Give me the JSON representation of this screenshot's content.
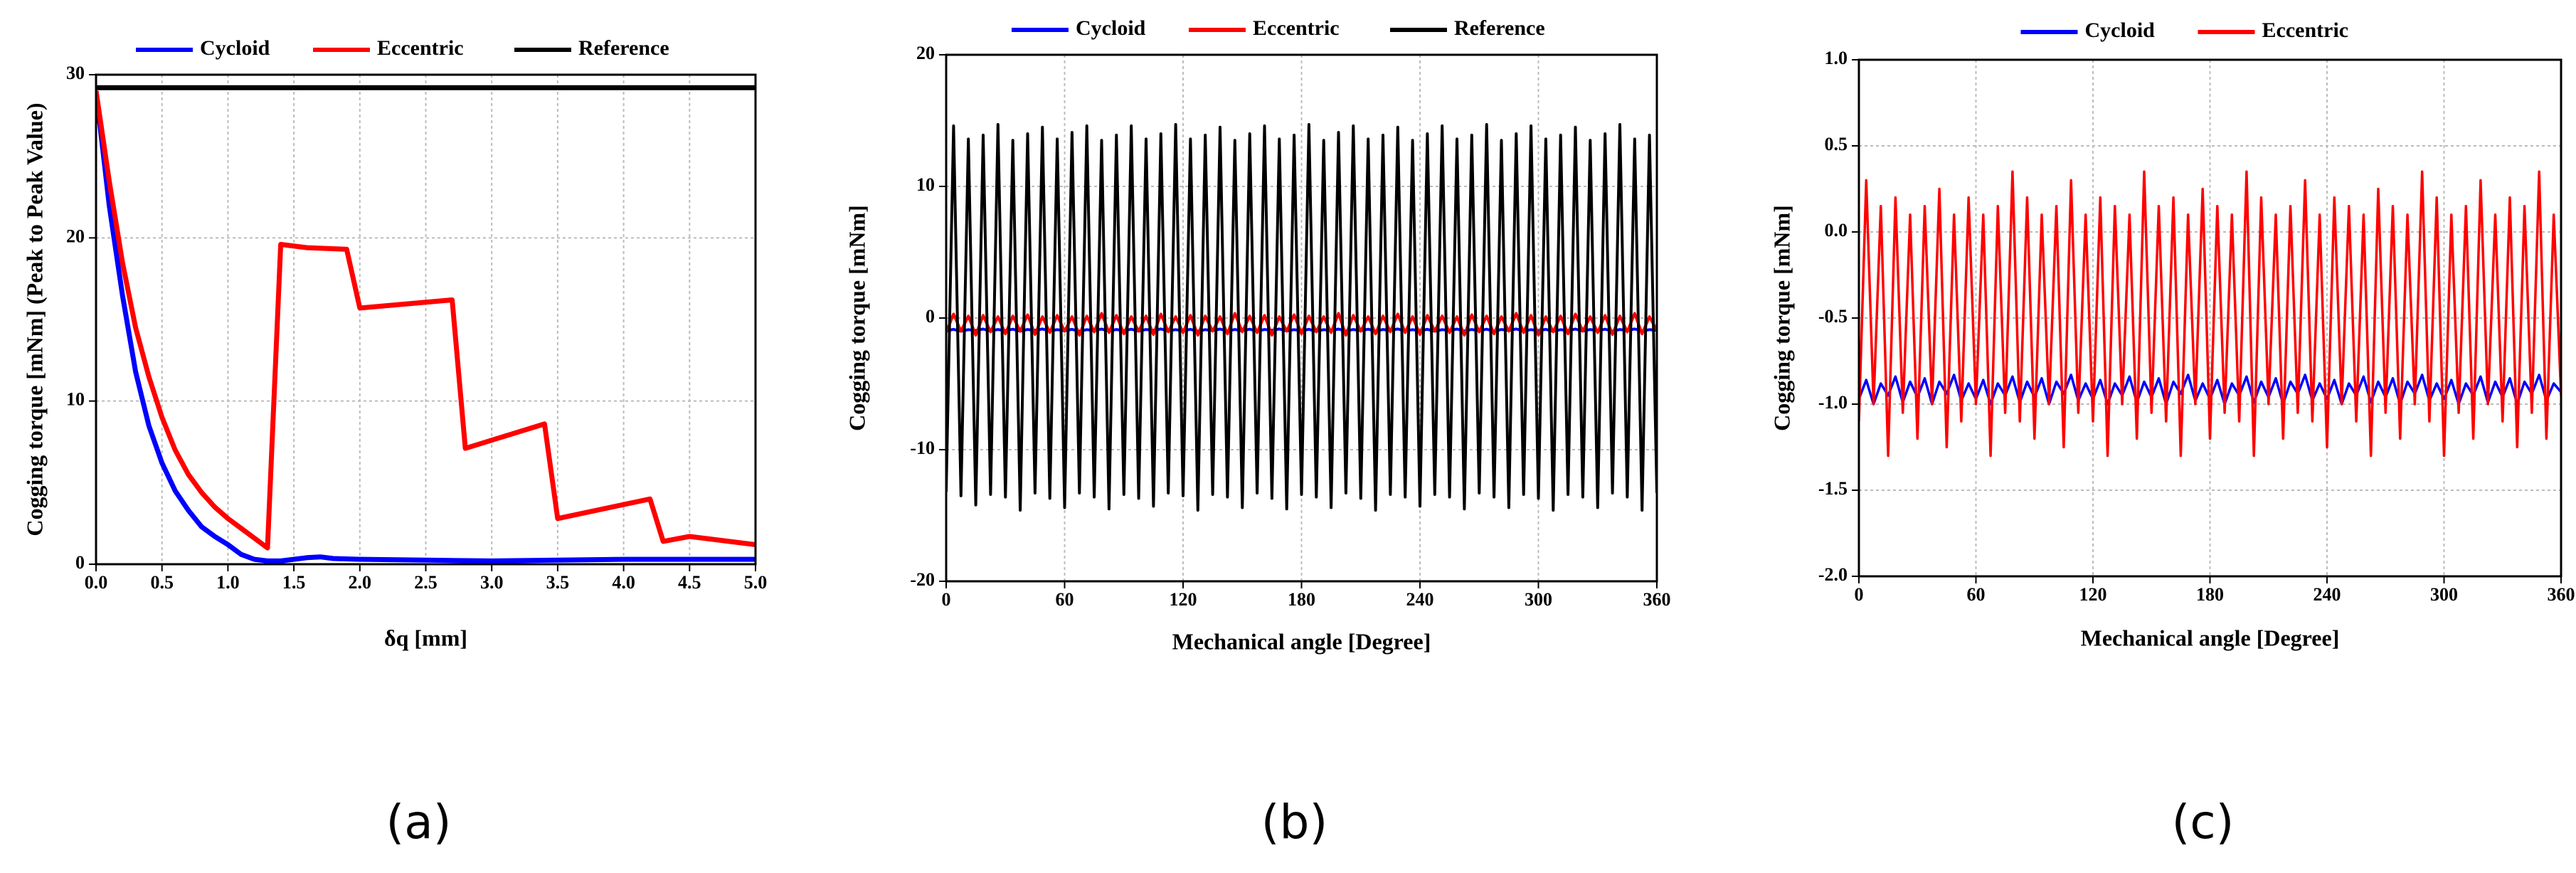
{
  "chart_data": [
    {
      "type": "line",
      "caption": "(a)",
      "xlabel": "δq [mm]",
      "ylabel": "Cogging torque [mNm] (Peak to Peak Value)",
      "xlim": [
        0,
        5
      ],
      "ylim": [
        0,
        30
      ],
      "xticks": [
        {
          "value": 0,
          "label": "0.0"
        },
        0.5,
        {
          "value": 1,
          "label": "1.0"
        },
        1.5,
        {
          "value": 2,
          "label": "2.0"
        },
        2.5,
        {
          "value": 3,
          "label": "3.0"
        },
        3.5,
        {
          "value": 4,
          "label": "4.0"
        },
        4.5,
        {
          "value": 5,
          "label": "5.0"
        }
      ],
      "yticks": [
        0,
        10,
        20,
        30
      ],
      "grid": true,
      "series": [
        {
          "name": "Cycloid",
          "color": "#0000ff",
          "x": [
            0,
            0.1,
            0.2,
            0.3,
            0.4,
            0.5,
            0.6,
            0.7,
            0.8,
            0.9,
            1.0,
            1.1,
            1.2,
            1.3,
            1.4,
            1.5,
            1.6,
            1.7,
            1.8,
            2.0,
            2.5,
            3.0,
            3.5,
            4.0,
            4.5,
            5.0
          ],
          "values": [
            29,
            22,
            16.5,
            11.8,
            8.5,
            6.2,
            4.5,
            3.3,
            2.3,
            1.7,
            1.2,
            0.6,
            0.3,
            0.2,
            0.2,
            0.3,
            0.4,
            0.45,
            0.35,
            0.3,
            0.25,
            0.2,
            0.25,
            0.3,
            0.3,
            0.3
          ]
        },
        {
          "name": "Eccentric",
          "color": "#ff0000",
          "x": [
            0,
            0.1,
            0.2,
            0.3,
            0.4,
            0.5,
            0.6,
            0.7,
            0.8,
            0.9,
            1.0,
            1.1,
            1.2,
            1.3,
            1.4,
            1.6,
            1.9,
            2.0,
            2.7,
            2.8,
            3.0,
            3.4,
            3.5,
            4.2,
            4.3,
            4.5,
            5.0
          ],
          "values": [
            29,
            23.5,
            18.5,
            14.5,
            11.5,
            9,
            7,
            5.5,
            4.4,
            3.5,
            2.8,
            2.2,
            1.6,
            1.0,
            19.6,
            19.4,
            19.3,
            15.7,
            16.2,
            7.1,
            7.6,
            8.6,
            2.8,
            4.0,
            1.4,
            1.7,
            1.2
          ]
        },
        {
          "name": "Reference",
          "color": "#000000",
          "x": [
            0,
            5
          ],
          "values": [
            29.2,
            29.2
          ]
        }
      ]
    },
    {
      "type": "line",
      "caption": "(b)",
      "xlabel": "Mechanical angle [Degree]",
      "ylabel": "Cogging torque [mNm]",
      "xlim": [
        0,
        360
      ],
      "ylim": [
        -20,
        20
      ],
      "xticks": [
        0,
        60,
        120,
        180,
        240,
        300,
        360
      ],
      "yticks": [
        -20,
        -10,
        0,
        10,
        20
      ],
      "grid": true,
      "x": [
        0,
        3.75,
        7.5,
        11.25,
        15,
        18.75,
        22.5,
        26.25,
        30,
        33.75,
        37.5,
        41.25,
        45,
        48.75,
        52.5,
        56.25,
        60,
        63.75,
        67.5,
        71.25,
        75,
        78.75,
        82.5,
        86.25,
        90,
        93.75,
        97.5,
        101.25,
        105,
        108.75,
        112.5,
        116.25,
        120,
        123.75,
        127.5,
        131.25,
        135,
        138.75,
        142.5,
        146.25,
        150,
        153.75,
        157.5,
        161.25,
        165,
        168.75,
        172.5,
        176.25,
        180,
        183.75,
        187.5,
        191.25,
        195,
        198.75,
        202.5,
        206.25,
        210,
        213.75,
        217.5,
        221.25,
        225,
        228.75,
        232.5,
        236.25,
        240,
        243.75,
        247.5,
        251.25,
        255,
        258.75,
        262.5,
        266.25,
        270,
        273.75,
        277.5,
        281.25,
        285,
        288.75,
        292.5,
        296.25,
        300,
        303.75,
        307.5,
        311.25,
        315,
        318.75,
        322.5,
        326.25,
        330,
        333.75,
        337.5,
        341.25,
        345,
        348.75,
        352.5,
        356.25,
        360
      ],
      "series": [
        {
          "name": "Cycloid",
          "color": "#0000ff",
          "values": [
            -0.97,
            -0.86,
            -1.0,
            -0.88,
            -0.95,
            -0.84,
            -0.99,
            -0.87,
            -0.96,
            -0.85,
            -1.0,
            -0.87,
            -0.94,
            -0.83,
            -0.98,
            -0.88,
            -0.97,
            -0.86,
            -1.0,
            -0.88,
            -0.95,
            -0.84,
            -0.99,
            -0.87,
            -0.96,
            -0.85,
            -1.0,
            -0.87,
            -0.94,
            -0.83,
            -0.98,
            -0.88,
            -0.97,
            -0.86,
            -1.0,
            -0.88,
            -0.95,
            -0.84,
            -0.99,
            -0.87,
            -0.96,
            -0.85,
            -1.0,
            -0.87,
            -0.94,
            -0.83,
            -0.98,
            -0.88,
            -0.97,
            -0.86,
            -1.0,
            -0.88,
            -0.95,
            -0.84,
            -0.99,
            -0.87,
            -0.96,
            -0.85,
            -1.0,
            -0.87,
            -0.94,
            -0.83,
            -0.98,
            -0.88,
            -0.97,
            -0.86,
            -1.0,
            -0.88,
            -0.95,
            -0.84,
            -0.99,
            -0.87,
            -0.96,
            -0.85,
            -1.0,
            -0.87,
            -0.94,
            -0.83,
            -0.98,
            -0.88,
            -0.97,
            -0.86,
            -1.0,
            -0.88,
            -0.95,
            -0.84,
            -0.99,
            -0.87,
            -0.96,
            -0.85,
            -1.0,
            -0.87,
            -0.94,
            -0.83,
            -0.98,
            -0.88,
            -0.93
          ]
        },
        {
          "name": "Eccentric",
          "color": "#ff0000",
          "values": [
            -1.1,
            0.3,
            -1.0,
            0.15,
            -1.3,
            0.2,
            -1.05,
            0.1,
            -1.2,
            0.15,
            -1.0,
            0.25,
            -1.25,
            0.1,
            -1.1,
            0.2,
            -1.0,
            0.1,
            -1.3,
            0.15,
            -1.05,
            0.35,
            -1.1,
            0.2,
            -1.2,
            0.1,
            -1.0,
            0.15,
            -1.25,
            0.3,
            -1.05,
            0.1,
            -1.1,
            0.2,
            -1.3,
            0.15,
            -1.0,
            0.1,
            -1.2,
            0.35,
            -1.05,
            0.15,
            -1.1,
            0.2,
            -1.3,
            0.1,
            -1.0,
            0.25,
            -1.2,
            0.15,
            -1.05,
            0.1,
            -1.1,
            0.35,
            -1.3,
            0.2,
            -1.0,
            0.1,
            -1.2,
            0.15,
            -1.05,
            0.3,
            -1.1,
            0.1,
            -1.25,
            0.2,
            -1.0,
            0.15,
            -1.1,
            0.1,
            -1.3,
            0.25,
            -1.05,
            0.15,
            -1.2,
            0.1,
            -1.0,
            0.35,
            -1.1,
            0.2,
            -1.3,
            0.1,
            -1.05,
            0.15,
            -1.2,
            0.3,
            -1.0,
            0.1,
            -1.1,
            0.2,
            -1.25,
            0.15,
            -1.05,
            0.35,
            -1.2,
            0.1,
            -0.95
          ]
        },
        {
          "name": "Reference",
          "color": "#000000",
          "values": [
            -13.2,
            14.6,
            -13.5,
            13.6,
            -14.2,
            13.9,
            -13.4,
            14.7,
            -13.6,
            13.5,
            -14.6,
            14.0,
            -13.3,
            14.5,
            -13.7,
            13.6,
            -14.4,
            14.1,
            -13.3,
            14.6,
            -13.6,
            13.5,
            -14.5,
            13.9,
            -13.4,
            14.6,
            -13.7,
            13.6,
            -14.3,
            14.0,
            -13.3,
            14.7,
            -13.5,
            13.6,
            -14.6,
            13.9,
            -13.4,
            14.5,
            -13.6,
            13.5,
            -14.4,
            14.0,
            -13.3,
            14.6,
            -13.7,
            13.6,
            -14.5,
            13.9,
            -13.4,
            14.7,
            -13.6,
            13.5,
            -14.4,
            14.1,
            -13.3,
            14.6,
            -13.7,
            13.6,
            -14.6,
            13.9,
            -13.4,
            14.5,
            -13.6,
            13.5,
            -14.3,
            14.0,
            -13.4,
            14.6,
            -13.6,
            13.6,
            -14.5,
            13.9,
            -13.3,
            14.7,
            -13.6,
            13.5,
            -14.4,
            14.0,
            -13.4,
            14.6,
            -13.7,
            13.6,
            -14.6,
            13.9,
            -13.4,
            14.5,
            -13.6,
            13.5,
            -14.4,
            14.0,
            -13.3,
            14.7,
            -13.6,
            13.6,
            -14.6,
            13.9,
            -13.3
          ]
        }
      ]
    },
    {
      "type": "line",
      "caption": "(c)",
      "xlabel": "Mechanical angle [Degree]",
      "ylabel": "Cogging torque [mNm]",
      "xlim": [
        0,
        360
      ],
      "ylim": [
        -2,
        1
      ],
      "xticks": [
        0,
        60,
        120,
        180,
        240,
        300,
        360
      ],
      "yticks": [
        {
          "value": -2,
          "label": "-2.0"
        },
        -1.5,
        {
          "value": -1,
          "label": "-1.0"
        },
        -0.5,
        {
          "value": 0,
          "label": "0.0"
        },
        0.5,
        {
          "value": 1,
          "label": "1.0"
        }
      ],
      "grid": true,
      "x": [
        0,
        3.75,
        7.5,
        11.25,
        15,
        18.75,
        22.5,
        26.25,
        30,
        33.75,
        37.5,
        41.25,
        45,
        48.75,
        52.5,
        56.25,
        60,
        63.75,
        67.5,
        71.25,
        75,
        78.75,
        82.5,
        86.25,
        90,
        93.75,
        97.5,
        101.25,
        105,
        108.75,
        112.5,
        116.25,
        120,
        123.75,
        127.5,
        131.25,
        135,
        138.75,
        142.5,
        146.25,
        150,
        153.75,
        157.5,
        161.25,
        165,
        168.75,
        172.5,
        176.25,
        180,
        183.75,
        187.5,
        191.25,
        195,
        198.75,
        202.5,
        206.25,
        210,
        213.75,
        217.5,
        221.25,
        225,
        228.75,
        232.5,
        236.25,
        240,
        243.75,
        247.5,
        251.25,
        255,
        258.75,
        262.5,
        266.25,
        270,
        273.75,
        277.5,
        281.25,
        285,
        288.75,
        292.5,
        296.25,
        300,
        303.75,
        307.5,
        311.25,
        315,
        318.75,
        322.5,
        326.25,
        330,
        333.75,
        337.5,
        341.25,
        345,
        348.75,
        352.5,
        356.25,
        360
      ],
      "series": [
        {
          "name": "Cycloid",
          "color": "#0000ff",
          "values": [
            -0.97,
            -0.86,
            -1.0,
            -0.88,
            -0.95,
            -0.84,
            -0.99,
            -0.87,
            -0.96,
            -0.85,
            -1.0,
            -0.87,
            -0.94,
            -0.83,
            -0.98,
            -0.88,
            -0.97,
            -0.86,
            -1.0,
            -0.88,
            -0.95,
            -0.84,
            -0.99,
            -0.87,
            -0.96,
            -0.85,
            -1.0,
            -0.87,
            -0.94,
            -0.83,
            -0.98,
            -0.88,
            -0.97,
            -0.86,
            -1.0,
            -0.88,
            -0.95,
            -0.84,
            -0.99,
            -0.87,
            -0.96,
            -0.85,
            -1.0,
            -0.87,
            -0.94,
            -0.83,
            -0.98,
            -0.88,
            -0.97,
            -0.86,
            -1.0,
            -0.88,
            -0.95,
            -0.84,
            -0.99,
            -0.87,
            -0.96,
            -0.85,
            -1.0,
            -0.87,
            -0.94,
            -0.83,
            -0.98,
            -0.88,
            -0.97,
            -0.86,
            -1.0,
            -0.88,
            -0.95,
            -0.84,
            -0.99,
            -0.87,
            -0.96,
            -0.85,
            -1.0,
            -0.87,
            -0.94,
            -0.83,
            -0.98,
            -0.88,
            -0.97,
            -0.86,
            -1.0,
            -0.88,
            -0.95,
            -0.84,
            -0.99,
            -0.87,
            -0.96,
            -0.85,
            -1.0,
            -0.87,
            -0.94,
            -0.83,
            -0.98,
            -0.88,
            -0.93
          ]
        },
        {
          "name": "Eccentric",
          "color": "#ff0000",
          "values": [
            -1.1,
            0.3,
            -1.0,
            0.15,
            -1.3,
            0.2,
            -1.05,
            0.1,
            -1.2,
            0.15,
            -1.0,
            0.25,
            -1.25,
            0.1,
            -1.1,
            0.2,
            -1.0,
            0.1,
            -1.3,
            0.15,
            -1.05,
            0.35,
            -1.1,
            0.2,
            -1.2,
            0.1,
            -1.0,
            0.15,
            -1.25,
            0.3,
            -1.05,
            0.1,
            -1.1,
            0.2,
            -1.3,
            0.15,
            -1.0,
            0.1,
            -1.2,
            0.35,
            -1.05,
            0.15,
            -1.1,
            0.2,
            -1.3,
            0.1,
            -1.0,
            0.25,
            -1.2,
            0.15,
            -1.05,
            0.1,
            -1.1,
            0.35,
            -1.3,
            0.2,
            -1.0,
            0.1,
            -1.2,
            0.15,
            -1.05,
            0.3,
            -1.1,
            0.1,
            -1.25,
            0.2,
            -1.0,
            0.15,
            -1.1,
            0.1,
            -1.3,
            0.25,
            -1.05,
            0.15,
            -1.2,
            0.1,
            -1.0,
            0.35,
            -1.1,
            0.2,
            -1.3,
            0.1,
            -1.05,
            0.15,
            -1.2,
            0.3,
            -1.0,
            0.1,
            -1.1,
            0.2,
            -1.25,
            0.15,
            -1.05,
            0.35,
            -1.2,
            0.1,
            -0.95
          ]
        }
      ]
    }
  ]
}
